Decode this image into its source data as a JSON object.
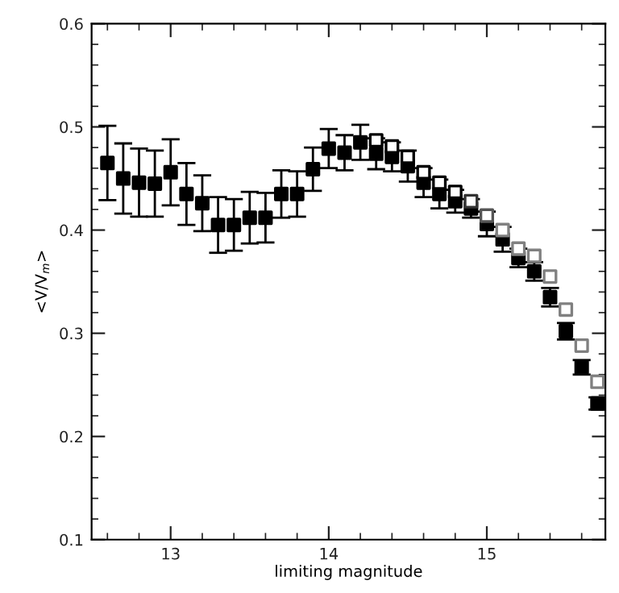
{
  "chart_data": {
    "type": "scatter",
    "xlabel": "limiting magnitude",
    "ylabel": "<V/V$_{m}$>",
    "xlim": [
      12.5,
      15.75
    ],
    "xticks": [
      13,
      14,
      15
    ],
    "ylim": [
      0.1,
      0.6
    ],
    "yticks": [
      0.1,
      0.2,
      0.3,
      0.4,
      0.5,
      0.6
    ],
    "grid": false,
    "legend": false,
    "marker": "square",
    "series": [
      {
        "color": "#000000",
        "x": [
          12.6,
          12.7,
          12.8,
          12.9,
          13.0,
          13.1,
          13.2,
          13.3,
          13.4,
          13.5,
          13.6,
          13.7,
          13.8,
          13.9,
          14.0,
          14.1,
          14.2,
          14.3,
          14.4,
          14.5,
          14.6,
          14.7,
          14.8,
          14.9,
          15.0,
          15.1,
          15.2,
          15.3,
          15.4,
          15.5,
          15.6,
          15.7
        ],
        "values": [
          0.465,
          0.45,
          0.446,
          0.445,
          0.456,
          0.435,
          0.426,
          0.405,
          0.405,
          0.412,
          0.412,
          0.435,
          0.435,
          0.459,
          0.479,
          0.475,
          0.485,
          0.474,
          0.471,
          0.462,
          0.446,
          0.435,
          0.428,
          0.421,
          0.406,
          0.391,
          0.373,
          0.36,
          0.335,
          0.302,
          0.267,
          0.232
        ],
        "errors": [
          0.036,
          0.034,
          0.033,
          0.032,
          0.032,
          0.03,
          0.027,
          0.027,
          0.025,
          0.025,
          0.024,
          0.023,
          0.022,
          0.021,
          0.019,
          0.017,
          0.017,
          0.015,
          0.014,
          0.015,
          0.014,
          0.014,
          0.011,
          0.009,
          0.012,
          0.012,
          0.009,
          0.009,
          0.009,
          0.008,
          0.007,
          0.006
        ]
      },
      {
        "colors": [
          "#000000",
          "#000000",
          "#000000",
          "#000000",
          "#000000",
          "#000000",
          "#333333",
          "#555555",
          "#808080",
          "#808080",
          "#808080",
          "#808080",
          "#808080",
          "#808080",
          "#808080"
        ],
        "x": [
          14.3,
          14.4,
          14.5,
          14.6,
          14.7,
          14.8,
          14.9,
          15.0,
          15.1,
          15.2,
          15.3,
          15.4,
          15.5,
          15.6,
          15.7
        ],
        "values": [
          0.487,
          0.481,
          0.471,
          0.456,
          0.446,
          0.437,
          0.428,
          0.414,
          0.4,
          0.382,
          0.375,
          0.355,
          0.323,
          0.288,
          0.253
        ]
      }
    ]
  }
}
